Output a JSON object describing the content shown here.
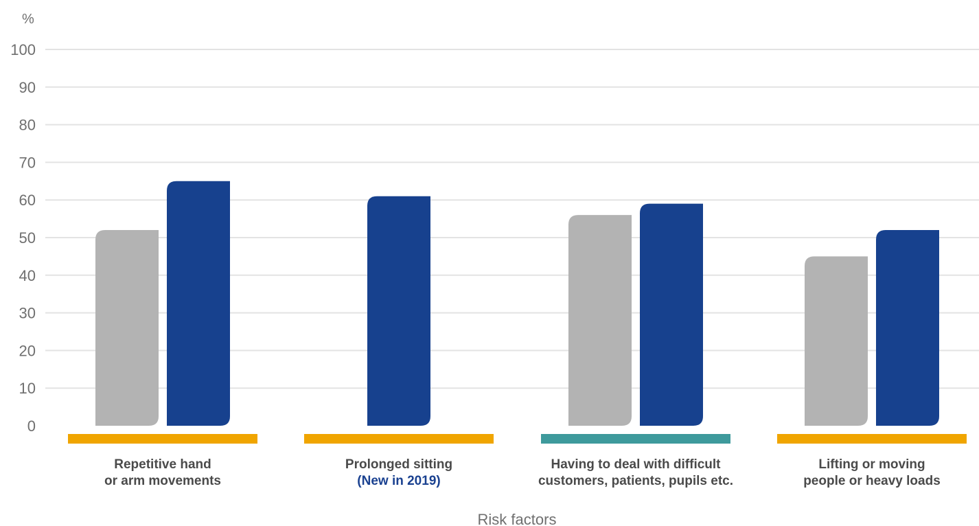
{
  "chart_data": {
    "type": "bar",
    "unit_label": "%",
    "xlabel": "Risk factors",
    "ylabel": "",
    "ylim": [
      0,
      100
    ],
    "yticks": [
      0,
      10,
      20,
      30,
      40,
      50,
      60,
      70,
      80,
      90,
      100
    ],
    "grid": true,
    "categories": [
      {
        "lines": [
          "Repetitive hand",
          "or arm movements"
        ],
        "note": "",
        "band_color": "#f0a500",
        "values": [
          52,
          65
        ]
      },
      {
        "lines": [
          "Prolonged sitting"
        ],
        "note": "(New in 2019)",
        "band_color": "#f0a500",
        "values": [
          null,
          61
        ]
      },
      {
        "lines": [
          "Having to deal with difficult",
          "customers, patients, pupils etc."
        ],
        "note": "",
        "band_color": "#3e9a9c",
        "values": [
          56,
          59
        ]
      },
      {
        "lines": [
          "Lifting or moving",
          "people or heavy loads"
        ],
        "note": "",
        "band_color": "#f0a500",
        "values": [
          45,
          52
        ]
      }
    ],
    "series": [
      {
        "color": "#b3b3b3",
        "values": [
          52,
          null,
          56,
          45
        ]
      },
      {
        "color": "#17418e",
        "values": [
          65,
          61,
          59,
          52
        ]
      }
    ],
    "colors": {
      "grid": "#e3e3e3",
      "note_text": "#1a4190"
    }
  }
}
